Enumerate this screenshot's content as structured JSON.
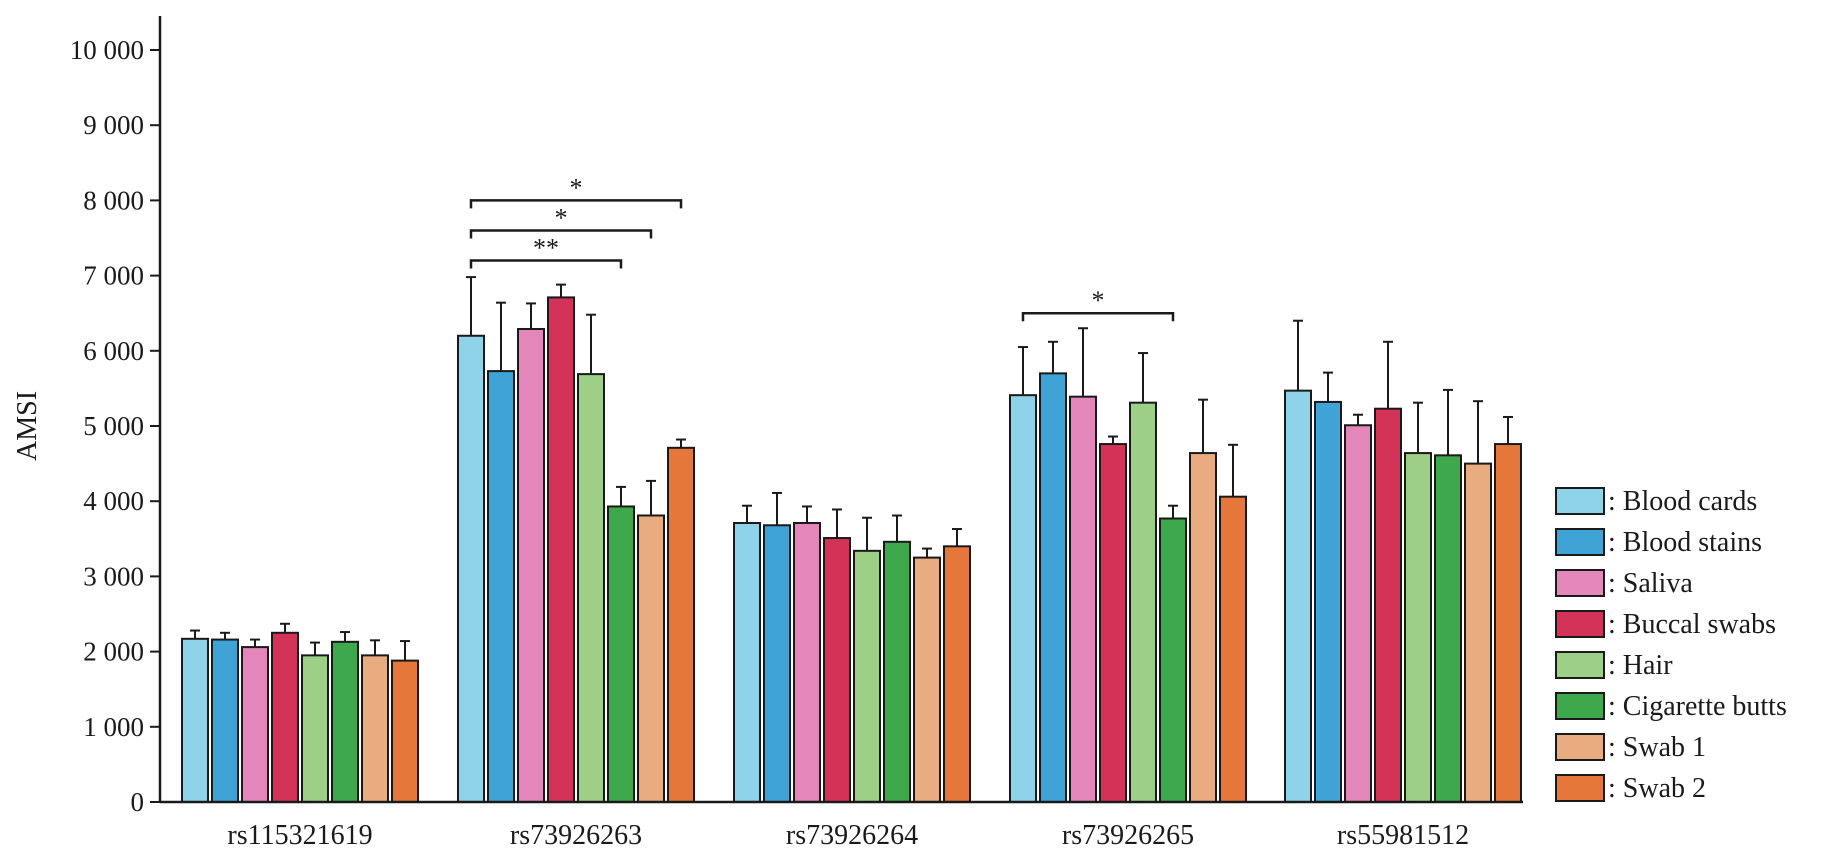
{
  "chart_data": {
    "type": "bar",
    "title": "",
    "xlabel": "",
    "ylabel": "AMSI",
    "ylim": [
      0,
      10000
    ],
    "yticks": [
      0,
      1000,
      2000,
      3000,
      4000,
      5000,
      6000,
      7000,
      8000,
      9000,
      10000
    ],
    "ytick_labels": [
      "0",
      "1 000",
      "2 000",
      "3 000",
      "4 000",
      "5 000",
      "6 000",
      "7 000",
      "8 000",
      "9 000",
      "10 000"
    ],
    "grid": false,
    "legend_position": "bottom-right",
    "categories": [
      "rs115321619",
      "rs73926263",
      "rs73926264",
      "rs73926265",
      "rs55981512"
    ],
    "series": [
      {
        "name": ": Blood cards",
        "color": "#8fd3e8",
        "values": [
          2170,
          6200,
          3710,
          5410,
          5470
        ],
        "errors": [
          110,
          780,
          230,
          640,
          930
        ]
      },
      {
        "name": ": Blood stains",
        "color": "#3fa3d6",
        "values": [
          2160,
          5730,
          3680,
          5700,
          5320
        ],
        "errors": [
          90,
          910,
          430,
          420,
          390
        ]
      },
      {
        "name": ": Saliva",
        "color": "#e387bb",
        "values": [
          2060,
          6290,
          3710,
          5390,
          5010
        ],
        "errors": [
          100,
          340,
          220,
          910,
          140
        ]
      },
      {
        "name": ": Buccal swabs",
        "color": "#d23356",
        "values": [
          2250,
          6710,
          3510,
          4760,
          5230
        ],
        "errors": [
          120,
          170,
          380,
          100,
          890
        ]
      },
      {
        "name": ": Hair",
        "color": "#9ecf86",
        "values": [
          1950,
          5690,
          3340,
          5310,
          4640
        ],
        "errors": [
          170,
          790,
          440,
          660,
          670
        ]
      },
      {
        "name": ": Cigarette butts",
        "color": "#3da84c",
        "values": [
          2130,
          3930,
          3460,
          3770,
          4610
        ],
        "errors": [
          130,
          260,
          350,
          170,
          870
        ]
      },
      {
        "name": ": Swab 1",
        "color": "#e8ac80",
        "values": [
          1950,
          3810,
          3250,
          4640,
          4500
        ],
        "errors": [
          200,
          460,
          120,
          710,
          830
        ]
      },
      {
        "name": ": Swab 2",
        "color": "#e5773a",
        "values": [
          1880,
          4710,
          3400,
          4060,
          4760
        ],
        "errors": [
          260,
          110,
          230,
          690,
          360
        ]
      }
    ],
    "annotations": [
      {
        "category": "rs73926263",
        "from_series": 0,
        "to_series": 7,
        "y": 8000,
        "label": "*"
      },
      {
        "category": "rs73926263",
        "from_series": 0,
        "to_series": 6,
        "y": 7600,
        "label": "*"
      },
      {
        "category": "rs73926263",
        "from_series": 0,
        "to_series": 5,
        "y": 7200,
        "label": "**"
      },
      {
        "category": "rs73926265",
        "from_series": 0,
        "to_series": 5,
        "y": 6500,
        "label": "*"
      }
    ]
  }
}
